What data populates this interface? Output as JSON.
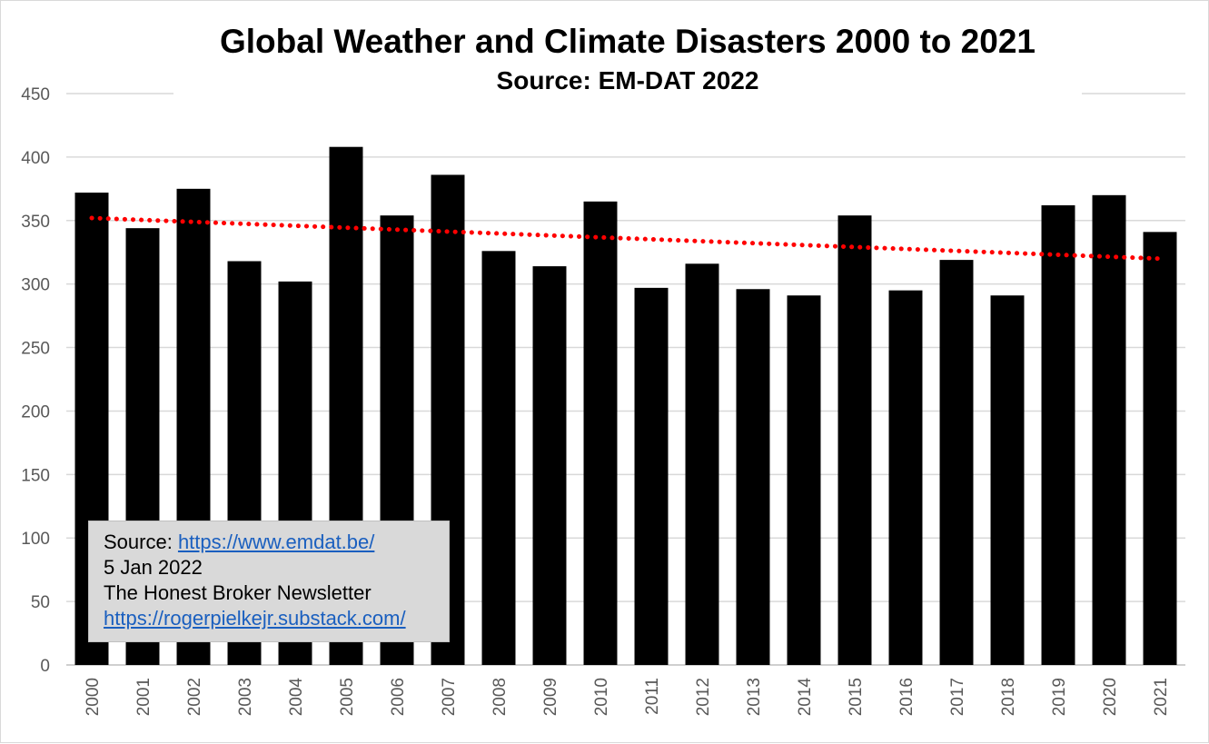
{
  "chart_data": {
    "type": "bar",
    "title": "Global Weather and Climate Disasters 2000 to 2021",
    "subtitle": "Source: EM-DAT 2022",
    "categories": [
      "2000",
      "2001",
      "2002",
      "2003",
      "2004",
      "2005",
      "2006",
      "2007",
      "2008",
      "2009",
      "2010",
      "2011",
      "2012",
      "2013",
      "2014",
      "2015",
      "2016",
      "2017",
      "2018",
      "2019",
      "2020",
      "2021"
    ],
    "values": [
      372,
      344,
      375,
      318,
      302,
      408,
      354,
      386,
      326,
      314,
      365,
      297,
      316,
      296,
      291,
      354,
      295,
      319,
      291,
      362,
      370,
      341
    ],
    "ylim": [
      0,
      450
    ],
    "yticks": [
      0,
      50,
      100,
      150,
      200,
      250,
      300,
      350,
      400,
      450
    ],
    "trendline": {
      "style": "dotted",
      "color": "#ff0000",
      "start": 352,
      "end": 320
    },
    "bar_color": "#000000",
    "grid": true,
    "xlabel": "",
    "ylabel": ""
  },
  "annotation": {
    "source_prefix": "Source: ",
    "source_url": "https://www.emdat.be/",
    "date": "5 Jan 2022",
    "newsletter": "The Honest Broker Newsletter",
    "newsletter_url": "https://rogerpielkejr.substack.com/"
  }
}
